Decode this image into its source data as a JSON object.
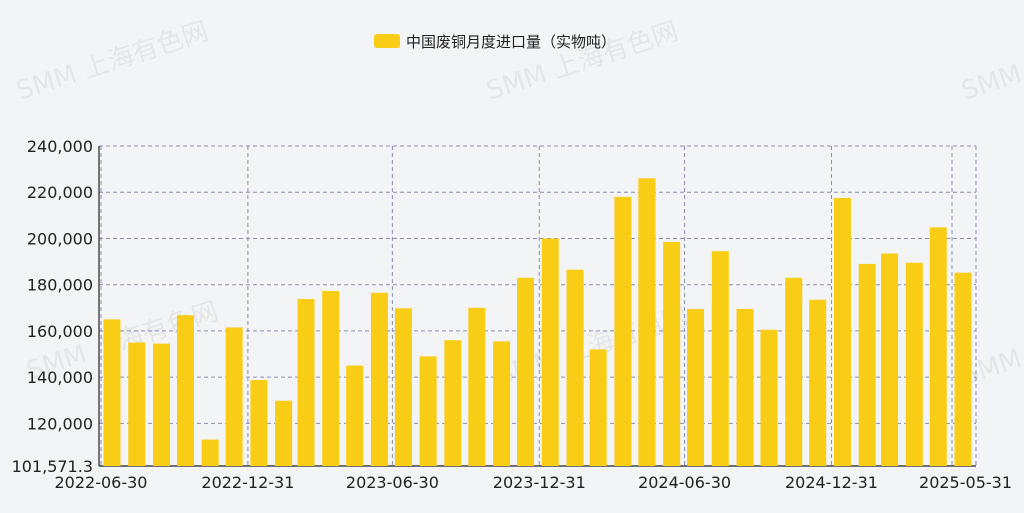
{
  "legend": {
    "label": "中国废铜月度进口量（实物吨）"
  },
  "watermark": "SMM 上海有色网",
  "colors": {
    "bar": "#f9cc15",
    "grid": "#8a8fb3",
    "axis": "#222222",
    "background": "#f3f4f6"
  },
  "chart_data": {
    "type": "bar",
    "title": "",
    "xlabel": "",
    "ylabel": "",
    "ylim": [
      101571.3,
      240000
    ],
    "y_ticks": [
      "240,000",
      "220,000",
      "200,000",
      "180,000",
      "160,000",
      "140,000",
      "120,000",
      "101,571.3"
    ],
    "y_tick_values": [
      240000,
      220000,
      200000,
      180000,
      160000,
      140000,
      120000,
      101571.3
    ],
    "x_tick_labels": [
      "2022-06-30",
      "2022-12-31",
      "2023-06-30",
      "2023-12-31",
      "2024-06-30",
      "2024-12-31",
      "2025-05-31"
    ],
    "x_tick_dates": [
      "2022-06-30",
      "2022-12-31",
      "2023-06-30",
      "2023-12-31",
      "2024-06-30",
      "2024-12-31",
      "2025-05-31"
    ],
    "grid": true,
    "legend_position": "top-center",
    "series": [
      {
        "name": "中国废铜月度进口量（实物吨）",
        "dates": [
          "2022-06-30",
          "2022-07-31",
          "2022-08-31",
          "2022-09-30",
          "2022-10-31",
          "2022-11-30",
          "2022-12-31",
          "2023-01-31",
          "2023-02-28",
          "2023-03-31",
          "2023-04-30",
          "2023-05-31",
          "2023-06-30",
          "2023-07-31",
          "2023-08-31",
          "2023-09-30",
          "2023-10-31",
          "2023-11-30",
          "2023-12-31",
          "2024-01-31",
          "2024-02-29",
          "2024-03-31",
          "2024-04-30",
          "2024-05-31",
          "2024-06-30",
          "2024-07-31",
          "2024-08-31",
          "2024-09-30",
          "2024-10-31",
          "2024-11-30",
          "2024-12-31",
          "2025-01-31",
          "2025-02-28",
          "2025-03-31",
          "2025-04-30",
          "2025-05-31"
        ],
        "values": [
          165000,
          155000,
          154500,
          166800,
          113000,
          161500,
          138800,
          129800,
          173800,
          177300,
          145000,
          176500,
          169800,
          149000,
          156000,
          170000,
          155500,
          183000,
          200000,
          186500,
          152000,
          218000,
          226000,
          198500,
          169500,
          194500,
          169500,
          160500,
          183000,
          173500,
          217500,
          189000,
          193500,
          189500,
          204800,
          185200
        ]
      }
    ]
  }
}
